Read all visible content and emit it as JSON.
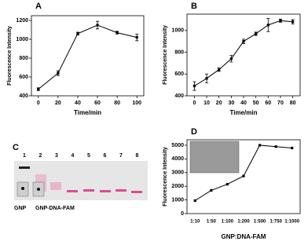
{
  "chart_data": [
    {
      "type": "line",
      "panel": "A",
      "x": [
        0,
        20,
        40,
        60,
        80,
        100
      ],
      "values": [
        470,
        640,
        1060,
        1150,
        1070,
        1020
      ],
      "errors": [
        15,
        25,
        15,
        40,
        15,
        35
      ],
      "xlim": [
        -7,
        107
      ],
      "xticks": [
        0,
        20,
        40,
        60,
        80,
        100
      ],
      "ylim": [
        400,
        1250
      ],
      "yticks": [
        400,
        600,
        800,
        1000,
        1200
      ],
      "xlabel": "Time/min",
      "ylabel": "Fluorescence Intensity",
      "color": "#000000"
    },
    {
      "type": "line",
      "panel": "B",
      "x": [
        0,
        10,
        20,
        30,
        40,
        50,
        60,
        70,
        80
      ],
      "values": [
        490,
        560,
        640,
        740,
        900,
        970,
        1050,
        1090,
        1080
      ],
      "errors": [
        40,
        40,
        15,
        30,
        20,
        15,
        60,
        15,
        20
      ],
      "xlim": [
        -6,
        86
      ],
      "xticks": [
        0,
        10,
        20,
        30,
        40,
        50,
        60,
        70,
        80
      ],
      "ylim": [
        400,
        1150
      ],
      "yticks": [
        400,
        600,
        800,
        1000
      ],
      "xlabel": "Time/min",
      "ylabel": "Fluorescence Intensity",
      "color": "#000000"
    },
    {
      "type": "category-line",
      "panel": "D",
      "categories": [
        "1:10",
        "1:50",
        "1:100",
        "1:200",
        "1:500",
        "1:750",
        "1:1000"
      ],
      "values": [
        950,
        1700,
        2150,
        2750,
        5000,
        4900,
        4800
      ],
      "ylim": [
        0,
        5400
      ],
      "yticks": [
        0,
        1000,
        2000,
        3000,
        4000,
        5000
      ],
      "xlabel": "GNP:DNA-FAM",
      "ylabel": "Fluorescence Intensity",
      "color": "#000000"
    }
  ],
  "gel": {
    "panel": "C",
    "lanes": [
      "1",
      "2",
      "3",
      "4",
      "5",
      "6",
      "7",
      "8"
    ],
    "labels": [
      "GNP",
      "GNP-DNA-FAM"
    ]
  }
}
